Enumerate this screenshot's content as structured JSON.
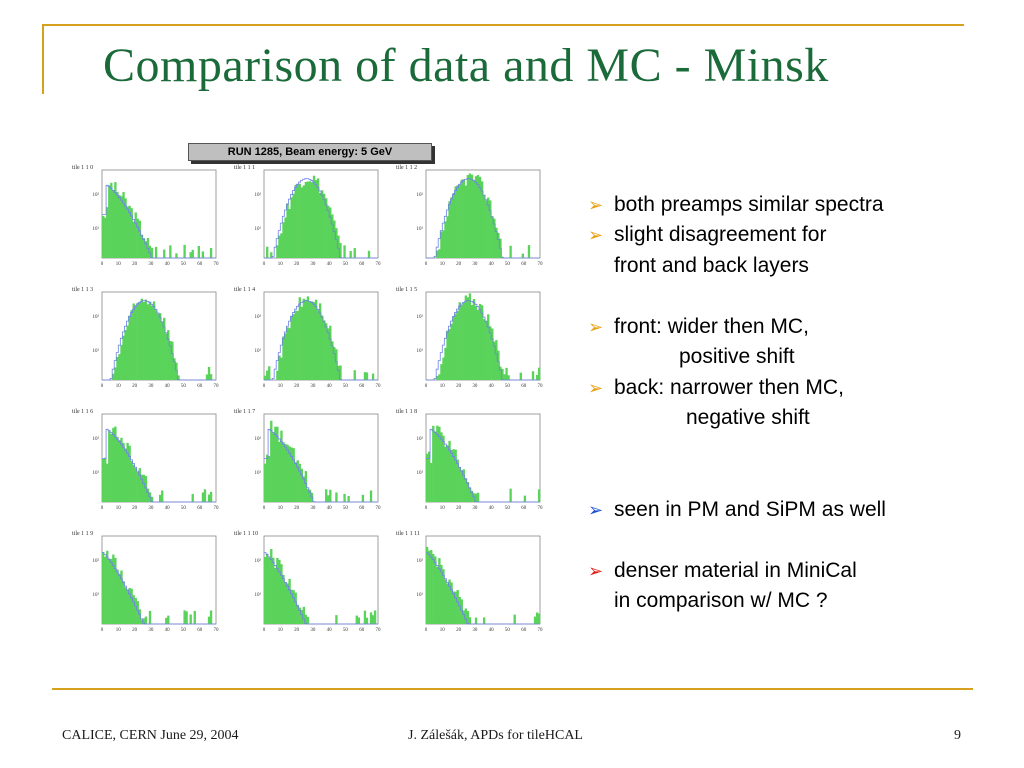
{
  "slide": {
    "title": "Comparison of data and MC - Minsk",
    "run_banner": "RUN 1285, Beam energy: 5 GeV",
    "panels": [
      {
        "label": "tile 1 1 0",
        "shape": "decay"
      },
      {
        "label": "tile 1 1 1",
        "shape": "bell"
      },
      {
        "label": "tile 1 1 2",
        "shape": "bell"
      },
      {
        "label": "tile 1 1 3",
        "shape": "bell"
      },
      {
        "label": "tile 1 1 4",
        "shape": "bell"
      },
      {
        "label": "tile 1 1 5",
        "shape": "bell"
      },
      {
        "label": "tile 1 1 6",
        "shape": "decay"
      },
      {
        "label": "tile 1 1 7",
        "shape": "decay"
      },
      {
        "label": "tile 1 1 8",
        "shape": "decay"
      },
      {
        "label": "tile 1 1 9",
        "shape": "steep"
      },
      {
        "label": "tile 1 1 10",
        "shape": "steep"
      },
      {
        "label": "tile 1 1 11",
        "shape": "steep"
      }
    ],
    "x_ticks": [
      "0",
      "10",
      "20",
      "30",
      "40",
      "50",
      "60",
      "70"
    ],
    "y_ticks": [
      "10²",
      "10¹"
    ],
    "colors": {
      "data_fill": "#5ad35a",
      "mc_line": "#6f82e6",
      "title": "#1b6b3a",
      "accent": "#d6a21e"
    },
    "bullets": [
      {
        "arrow": "orange",
        "text": "both preamps similar spectra"
      },
      {
        "arrow": "orange",
        "text": "slight disagreement for"
      },
      {
        "arrow": "",
        "text": "front and back layers"
      },
      {
        "arrow": "orange",
        "text": "front: wider then MC,"
      },
      {
        "arrow": "",
        "text": "positive shift"
      },
      {
        "arrow": "orange",
        "text": "back: narrower then MC,"
      },
      {
        "arrow": "",
        "text": "negative shift"
      },
      {
        "arrow": "blue",
        "text": "seen in PM and SiPM as well"
      },
      {
        "arrow": "red",
        "text": "denser material in MiniCal"
      },
      {
        "arrow": "",
        "text": "in comparison w/ MC ?"
      }
    ]
  },
  "footer": {
    "left": "CALICE, CERN June 29, 2004",
    "center": "J. Zálešák, APDs for tileHCAL",
    "page": "9"
  }
}
